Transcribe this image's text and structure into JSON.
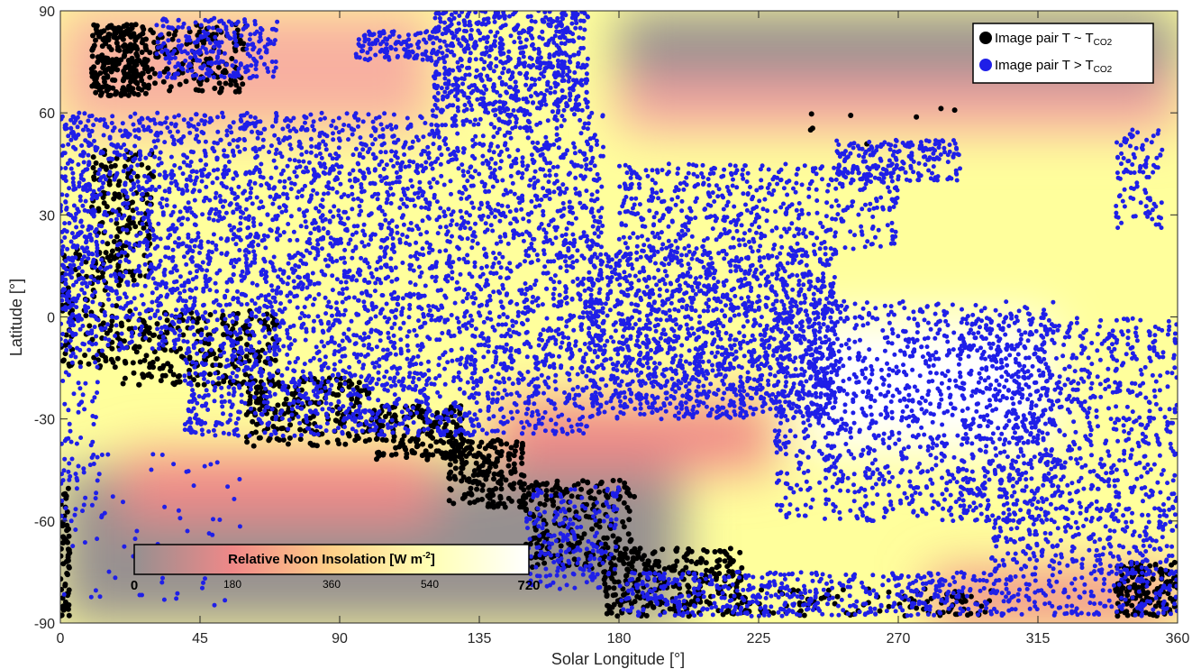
{
  "chart_data": {
    "type": "scatter",
    "xlabel": "Solar Longitude [°]",
    "ylabel": "Latitude [°]",
    "xlim": [
      0,
      360
    ],
    "ylim": [
      -90,
      90
    ],
    "x_ticks": [
      0,
      45,
      90,
      135,
      180,
      225,
      270,
      315,
      360
    ],
    "y_ticks": [
      -90,
      -60,
      -30,
      0,
      30,
      60,
      90
    ],
    "x_tick_labels": [
      "0",
      "45",
      "90",
      "135",
      "180",
      "225",
      "270",
      "315",
      "360"
    ],
    "y_tick_labels": [
      "-90",
      "-60",
      "-30",
      "0",
      "30",
      "60",
      "90"
    ],
    "grid": false,
    "legend_position": "top-right",
    "background_colormap": {
      "title": "Relative Noon Insolation [W m",
      "title_superscript": "-2",
      "title_close": "]",
      "range": [
        0,
        720
      ],
      "ticks": [
        "0",
        "180",
        "360",
        "540",
        "720"
      ],
      "position": "bottom-left",
      "colors": [
        "#969090",
        "#f08888",
        "#ffd088",
        "#ffffb4",
        "#ffffff"
      ]
    },
    "series": [
      {
        "name": "Image pair T ~ T",
        "name_subscript": "CO2",
        "color": "#000000",
        "clusters": [
          {
            "x": [
              10,
              28
            ],
            "y": [
              65,
              86
            ],
            "n": 260
          },
          {
            "x": [
              28,
              60
            ],
            "y": [
              66,
              86
            ],
            "n": 140
          },
          {
            "x": [
              10,
              30
            ],
            "y": [
              10,
              50
            ],
            "n": 160
          },
          {
            "x": [
              0,
              20
            ],
            "y": [
              -15,
              20
            ],
            "n": 120
          },
          {
            "x": [
              20,
              70
            ],
            "y": [
              -20,
              2
            ],
            "n": 240
          },
          {
            "x": [
              60,
              100
            ],
            "y": [
              -38,
              -18
            ],
            "n": 200
          },
          {
            "x": [
              100,
              130
            ],
            "y": [
              -42,
              -26
            ],
            "n": 180
          },
          {
            "x": [
              125,
              150
            ],
            "y": [
              -56,
              -36
            ],
            "n": 200
          },
          {
            "x": [
              150,
              185
            ],
            "y": [
              -74,
              -48
            ],
            "n": 220
          },
          {
            "x": [
              175,
              220
            ],
            "y": [
              -88,
              -68
            ],
            "n": 300
          },
          {
            "x": [
              220,
              300
            ],
            "y": [
              -88,
              -80
            ],
            "n": 100
          },
          {
            "x": [
              340,
              360
            ],
            "y": [
              -88,
              -72
            ],
            "n": 150
          },
          {
            "x": [
              0,
              3
            ],
            "y": [
              -88,
              -50
            ],
            "n": 60
          },
          {
            "x": [
              240,
              290
            ],
            "y": [
              50,
              62
            ],
            "n": 8
          }
        ]
      },
      {
        "name": "Image pair T > T",
        "name_subscript": "CO2",
        "color": "#1f1fe8",
        "clusters": [
          {
            "x": [
              0,
              175
            ],
            "y": [
              -10,
              60
            ],
            "n": 3200
          },
          {
            "x": [
              40,
              170
            ],
            "y": [
              -35,
              -10
            ],
            "n": 900
          },
          {
            "x": [
              120,
              170
            ],
            "y": [
              60,
              90
            ],
            "n": 700
          },
          {
            "x": [
              30,
              70
            ],
            "y": [
              70,
              88
            ],
            "n": 250
          },
          {
            "x": [
              95,
              120
            ],
            "y": [
              75,
              84
            ],
            "n": 120
          },
          {
            "x": [
              170,
              250
            ],
            "y": [
              -30,
              20
            ],
            "n": 1600
          },
          {
            "x": [
              180,
              270
            ],
            "y": [
              20,
              45
            ],
            "n": 500
          },
          {
            "x": [
              250,
              290
            ],
            "y": [
              40,
              52
            ],
            "n": 200
          },
          {
            "x": [
              230,
              320
            ],
            "y": [
              -60,
              5
            ],
            "n": 1100
          },
          {
            "x": [
              290,
              360
            ],
            "y": [
              -60,
              0
            ],
            "n": 800
          },
          {
            "x": [
              300,
              360
            ],
            "y": [
              -88,
              -60
            ],
            "n": 400
          },
          {
            "x": [
              180,
              300
            ],
            "y": [
              -88,
              -75
            ],
            "n": 500
          },
          {
            "x": [
              340,
              355
            ],
            "y": [
              25,
              55
            ],
            "n": 100
          },
          {
            "x": [
              0,
              60
            ],
            "y": [
              -85,
              -40
            ],
            "n": 70
          },
          {
            "x": [
              150,
              180
            ],
            "y": [
              -80,
              -50
            ],
            "n": 200
          },
          {
            "x": [
              0,
              12
            ],
            "y": [
              -60,
              60
            ],
            "n": 150
          }
        ]
      }
    ]
  }
}
